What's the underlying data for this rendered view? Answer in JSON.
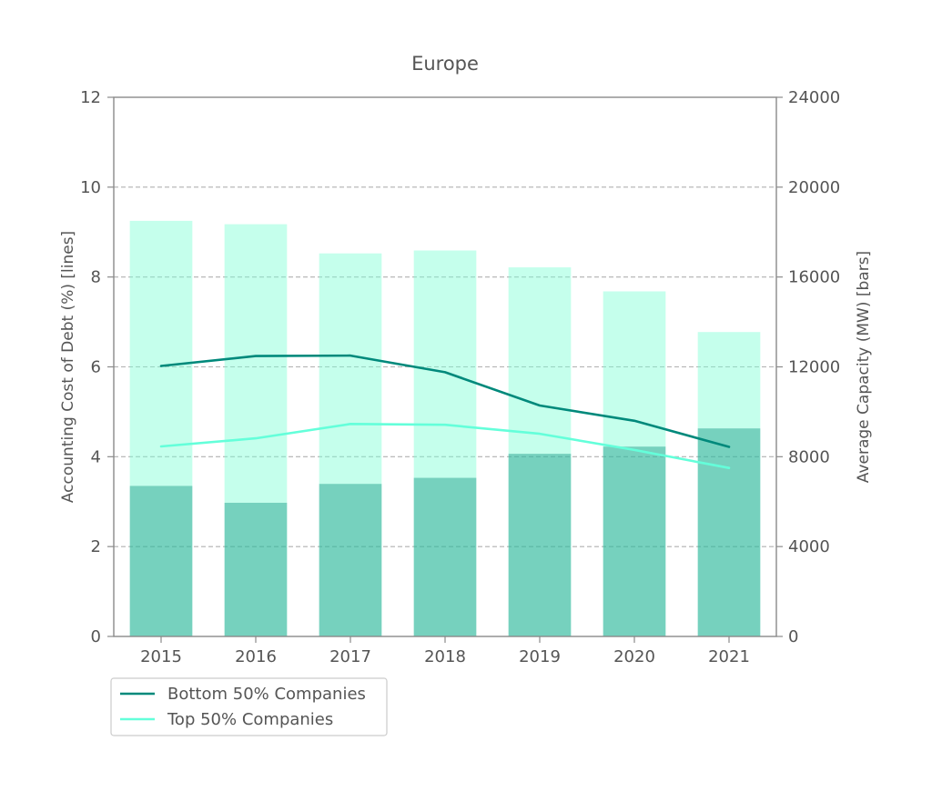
{
  "chart_data": {
    "type": "bar",
    "title": "Europe",
    "categories": [
      "2015",
      "2016",
      "2017",
      "2018",
      "2019",
      "2020",
      "2021"
    ],
    "y_left": {
      "label": "Accounting Cost of Debt (%)  [lines]",
      "lim": [
        0,
        12
      ],
      "ticks": [
        0,
        2,
        4,
        6,
        8,
        10,
        12
      ]
    },
    "y_right": {
      "label": "Average Capacity (MW) [bars]",
      "lim": [
        0,
        24000
      ],
      "ticks": [
        0,
        4000,
        8000,
        12000,
        16000,
        20000,
        24000
      ]
    },
    "grid": true,
    "bar_series": [
      {
        "group": "Top 50% Companies",
        "color": "#7fffd4",
        "values": [
          18500,
          18350,
          17050,
          17180,
          16430,
          15360,
          13550
        ]
      },
      {
        "group": "Bottom 50% Companies",
        "color": "#008b7a",
        "values": [
          6700,
          5950,
          6790,
          7060,
          8130,
          8450,
          9260
        ]
      }
    ],
    "line_series": [
      {
        "name": "Bottom 50% Companies",
        "color": "#00897b",
        "values": [
          6.02,
          6.24,
          6.25,
          5.88,
          5.14,
          4.8,
          4.22
        ]
      },
      {
        "name": "Top 50% Companies",
        "color": "#64ffda",
        "values": [
          4.23,
          4.41,
          4.73,
          4.71,
          4.51,
          4.15,
          3.75
        ]
      }
    ],
    "legend": {
      "placement": "bottom-left",
      "entries": [
        "Bottom 50% Companies",
        "Top 50% Companies"
      ]
    }
  }
}
